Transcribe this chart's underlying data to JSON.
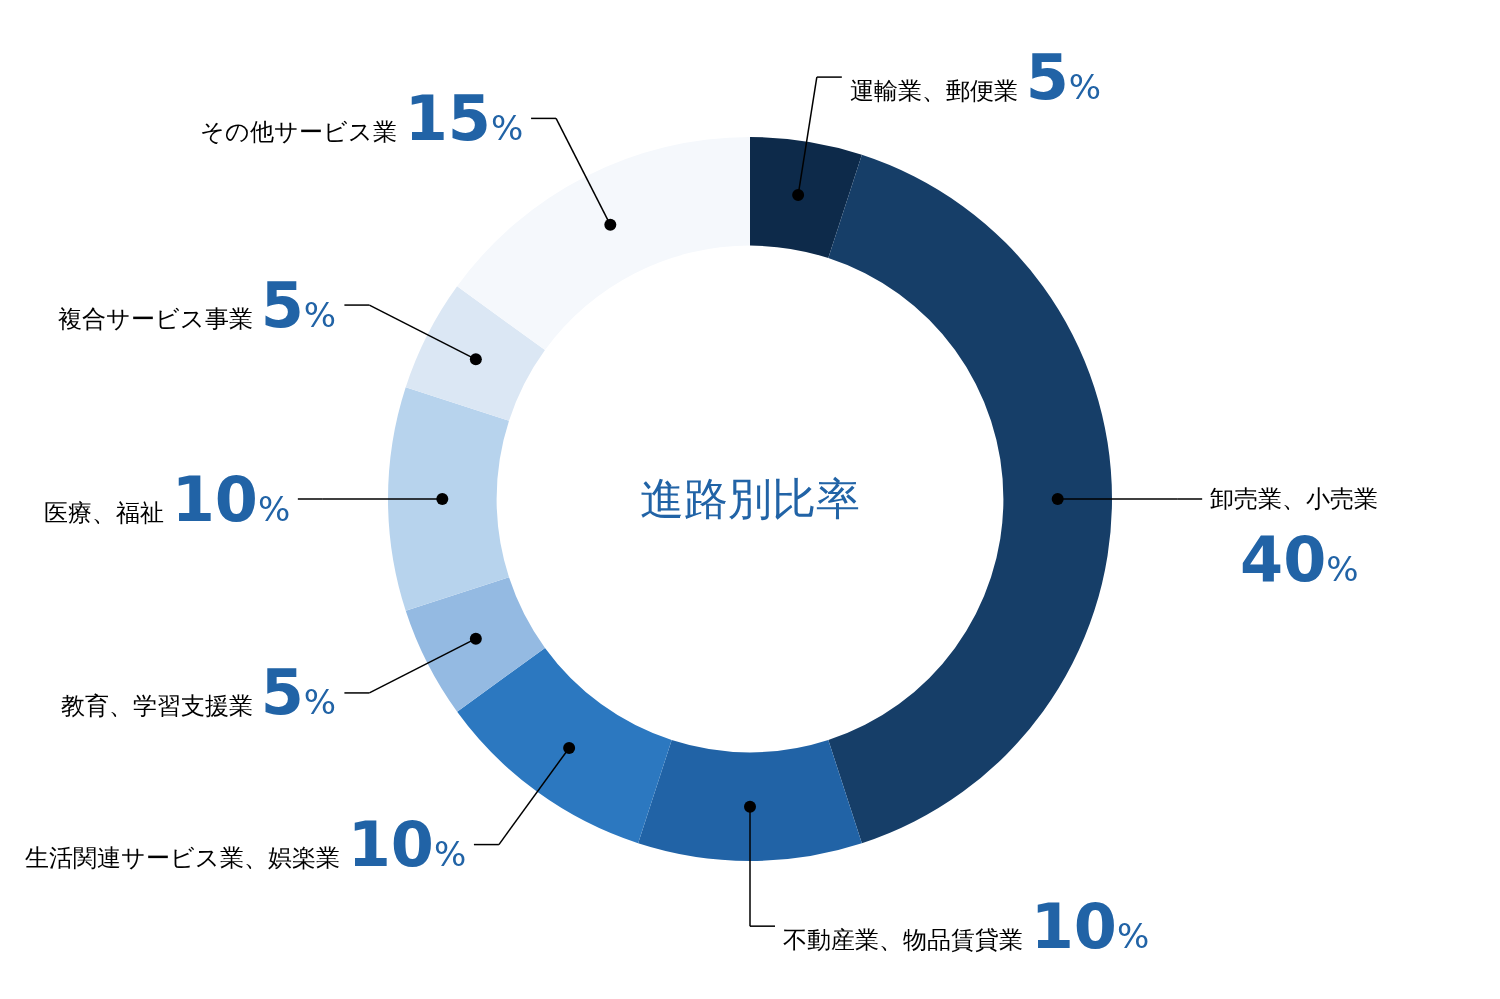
{
  "chart_data": {
    "type": "donut",
    "title": "進路別比率",
    "categories": [
      "運輸業、郵便業",
      "卸売業、小売業",
      "不動産業、物品賃貸業",
      "生活関連サービス業、娯楽業",
      "教育、学習支援業",
      "医療、福祉",
      "複合サービス事業",
      "その他サービス業"
    ],
    "values": [
      5,
      40,
      10,
      10,
      5,
      10,
      5,
      15
    ],
    "colors": [
      "#0d2a4a",
      "#163e68",
      "#2163a6",
      "#2c78c0",
      "#94bae2",
      "#b7d3ed",
      "#dbe7f4",
      "#f5f8fc"
    ],
    "value_labels": [
      "5%",
      "40%",
      "10%",
      "10%",
      "5%",
      "10%",
      "5%",
      "15%"
    ],
    "legend": false
  }
}
